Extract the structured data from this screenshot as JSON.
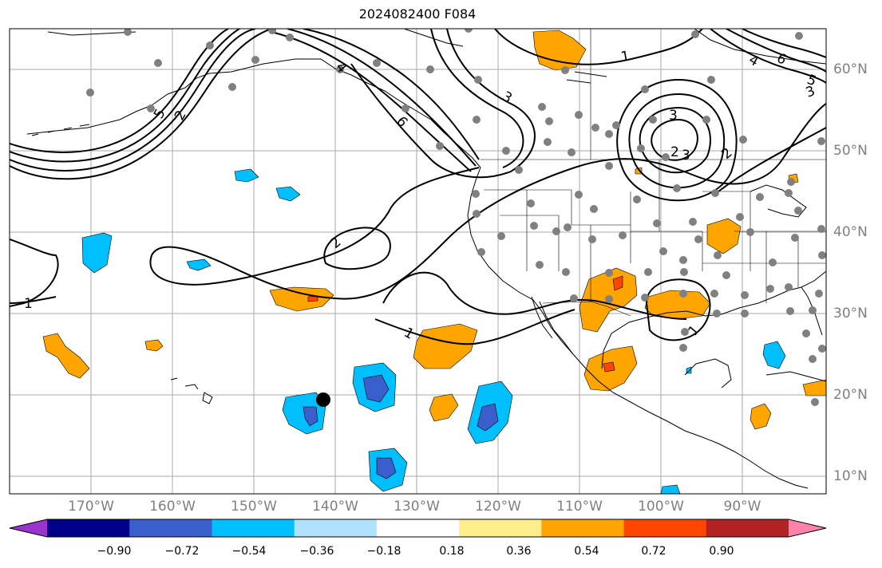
{
  "title": "2024082400 F084",
  "lat_labels": [
    "60°N",
    "50°N",
    "40°N",
    "30°N",
    "20°N",
    "10°N"
  ],
  "lon_labels": [
    "170°W",
    "160°W",
    "150°W",
    "140°W",
    "130°W",
    "120°W",
    "110°W",
    "100°W",
    "90°W"
  ],
  "colorbar": {
    "colors": [
      "#9a32cd",
      "#00008b",
      "#3a5fcd",
      "#00bfff",
      "#b0e2ff",
      "#ffffff",
      "#ffec8b",
      "#ffa500",
      "#ff4500",
      "#b22222",
      "#ff82ab"
    ],
    "ticks": [
      "−0.90",
      "−0.72",
      "−0.54",
      "−0.36",
      "−0.18",
      "0.18",
      "0.36",
      "0.54",
      "0.72",
      "0.90"
    ]
  },
  "contour_labels": [
    "1",
    "1",
    "1",
    "1",
    "2",
    "2",
    "2",
    "2",
    "3",
    "3",
    "3",
    "3",
    "4",
    "4",
    "5",
    "5",
    "6",
    "6"
  ]
}
